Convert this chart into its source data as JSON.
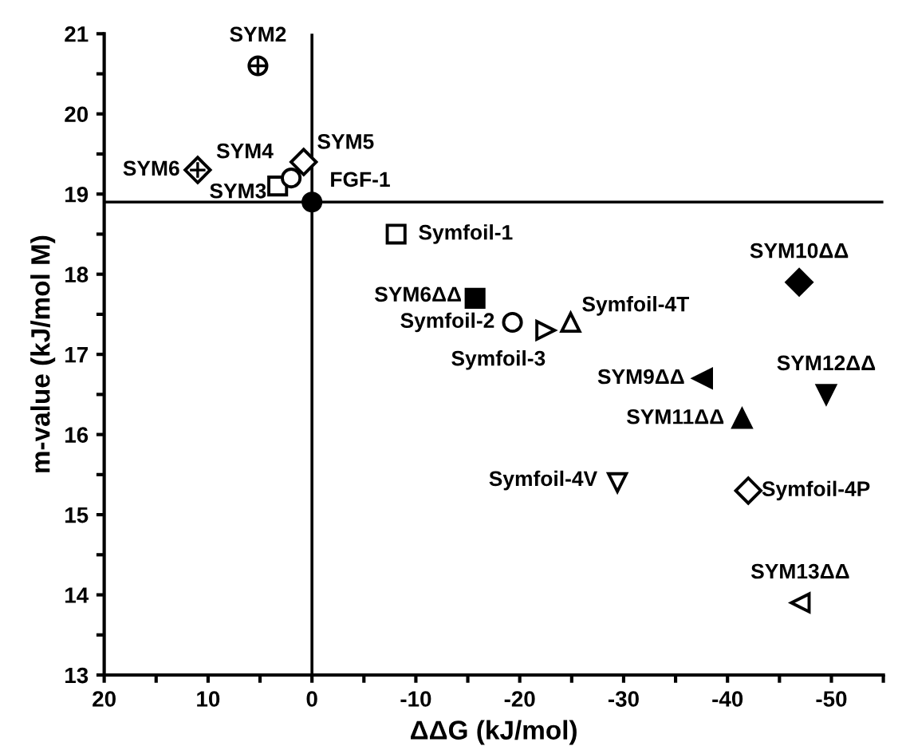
{
  "chart_data": {
    "type": "scatter",
    "xlabel": "ΔΔG (kJ/mol)",
    "ylabel": "m-value (kJ/mol M)",
    "xlim": [
      20,
      -55
    ],
    "ylim": [
      13,
      21
    ],
    "xticks": [
      20,
      {
        "value": 15,
        "label": null
      },
      10,
      {
        "value": 5,
        "label": null
      },
      0,
      {
        "value": -5,
        "label": null
      },
      -10,
      {
        "value": -15,
        "label": null
      },
      -20,
      {
        "value": -25,
        "label": null
      },
      -30,
      {
        "value": -35,
        "label": null
      },
      -40,
      {
        "value": -45,
        "label": null
      },
      -50,
      {
        "value": -55,
        "label": null
      }
    ],
    "yticks": [
      13,
      {
        "value": 13.5,
        "label": null
      },
      14,
      {
        "value": 14.5,
        "label": null
      },
      15,
      {
        "value": 15.5,
        "label": null
      },
      16,
      {
        "value": 16.5,
        "label": null
      },
      17,
      {
        "value": 17.5,
        "label": null
      },
      18,
      {
        "value": 18.5,
        "label": null
      },
      19,
      {
        "value": 19.5,
        "label": null
      },
      20,
      {
        "value": 20.5,
        "label": null
      },
      21
    ],
    "grid": false,
    "legend": false,
    "ref_lines": [
      {
        "axis": "x",
        "value": 0,
        "color": "#000000"
      },
      {
        "axis": "y",
        "value": 18.9,
        "color": "#000000"
      }
    ],
    "series": [
      {
        "name": "SYM2",
        "color": "#000000",
        "marker": "circle",
        "x": [
          5.2
        ],
        "values": [
          20.6
        ]
      },
      {
        "name": "SYM6",
        "color": "#000000",
        "marker": "diamond",
        "x": [
          11
        ],
        "values": [
          19.3
        ]
      },
      {
        "name": "SYM3",
        "color": "#000000",
        "marker": "square",
        "x": [
          3.3
        ],
        "values": [
          19.1
        ]
      },
      {
        "name": "SYM4",
        "color": "#000000",
        "marker": "circle",
        "x": [
          2
        ],
        "values": [
          19.2
        ]
      },
      {
        "name": "SYM5",
        "color": "#000000",
        "marker": "diamond",
        "x": [
          0.8
        ],
        "values": [
          19.4
        ]
      },
      {
        "name": "FGF-1",
        "color": "#000000",
        "marker": "circle",
        "x": [
          0
        ],
        "values": [
          18.9
        ]
      },
      {
        "name": "Symfoil-1",
        "color": "#000000",
        "marker": "square",
        "x": [
          -8.1
        ],
        "values": [
          18.5
        ]
      },
      {
        "name": "SYM6ΔΔ",
        "color": "#000000",
        "marker": "square",
        "x": [
          -15.7
        ],
        "values": [
          17.7
        ]
      },
      {
        "name": "Symfoil-2",
        "color": "#000000",
        "marker": "circle",
        "x": [
          -19.3
        ],
        "values": [
          17.4
        ]
      },
      {
        "name": "Symfoil-3",
        "color": "#000000",
        "marker": "triangle",
        "x": [
          -22.5
        ],
        "values": [
          17.3
        ]
      },
      {
        "name": "Symfoil-4T",
        "color": "#000000",
        "marker": "triangle",
        "x": [
          -24.9
        ],
        "values": [
          17.4
        ]
      },
      {
        "name": "SYM10ΔΔ",
        "color": "#000000",
        "marker": "diamond",
        "x": [
          -46.9
        ],
        "values": [
          17.9
        ]
      },
      {
        "name": "SYM9ΔΔ",
        "color": "#000000",
        "marker": "triangle",
        "x": [
          -37.6
        ],
        "values": [
          16.7
        ]
      },
      {
        "name": "SYM12ΔΔ",
        "color": "#000000",
        "marker": "triangle",
        "x": [
          -49.5
        ],
        "values": [
          16.5
        ]
      },
      {
        "name": "SYM11ΔΔ",
        "color": "#000000",
        "marker": "triangle",
        "x": [
          -41.4
        ],
        "values": [
          16.2
        ]
      },
      {
        "name": "Symfoil-4V",
        "color": "#000000",
        "marker": "triangle",
        "x": [
          -29.4
        ],
        "values": [
          15.4
        ]
      },
      {
        "name": "Symfoil-4P",
        "color": "#000000",
        "marker": "diamond",
        "x": [
          -42
        ],
        "values": [
          15.3
        ]
      },
      {
        "name": "SYM13ΔΔ",
        "color": "#000000",
        "marker": "triangle",
        "x": [
          -47
        ],
        "values": [
          13.9
        ]
      }
    ]
  }
}
